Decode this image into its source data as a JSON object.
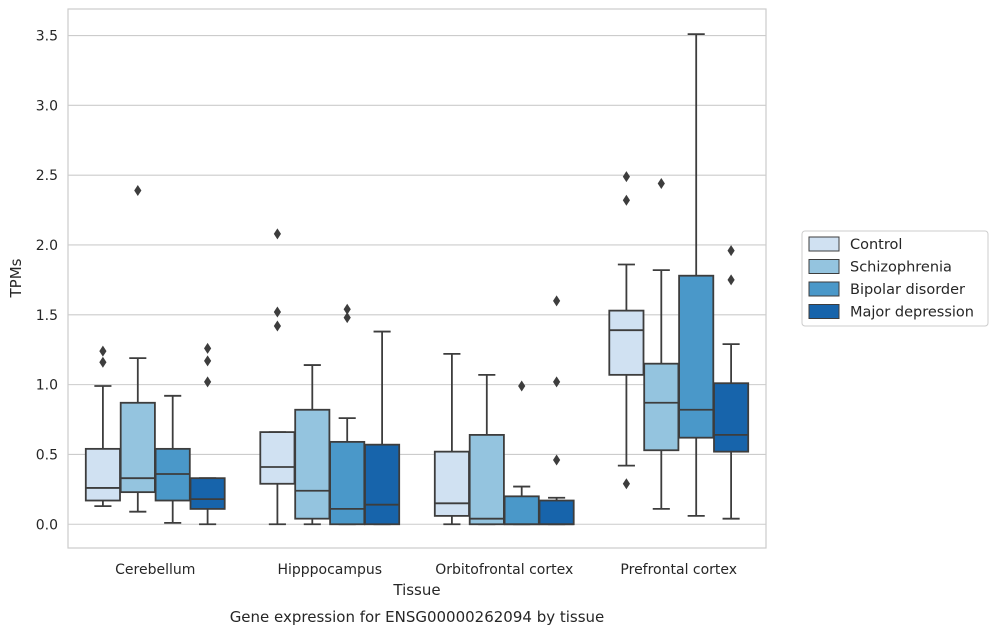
{
  "chart_data": {
    "type": "box",
    "title": "",
    "caption": "Gene expression for ENSG00000262094 by tissue",
    "xlabel": "Tissue",
    "ylabel": "TPMs",
    "ylim": [
      -0.17,
      3.69
    ],
    "yticks": [
      0.0,
      0.5,
      1.0,
      1.5,
      2.0,
      2.5,
      3.0,
      3.5
    ],
    "ytick_labels": [
      "0.0",
      "0.5",
      "1.0",
      "1.5",
      "2.0",
      "2.5",
      "3.0",
      "3.5"
    ],
    "grid": "horizontal",
    "legend_position": "right",
    "categories": [
      "Cerebellum",
      "Hipppocampus",
      "Orbitofrontal cortex",
      "Prefrontal cortex"
    ],
    "series": [
      {
        "name": "Control",
        "color": "#d0e1f2",
        "boxes": [
          {
            "whisker_low": 0.13,
            "q1": 0.17,
            "median": 0.26,
            "q3": 0.54,
            "whisker_high": 0.99,
            "outliers": [
              1.16,
              1.24
            ]
          },
          {
            "whisker_low": 0.0,
            "q1": 0.29,
            "median": 0.41,
            "q3": 0.66,
            "whisker_high": 0.66,
            "outliers": [
              1.42,
              1.52,
              2.08
            ]
          },
          {
            "whisker_low": 0.0,
            "q1": 0.06,
            "median": 0.15,
            "q3": 0.52,
            "whisker_high": 1.22,
            "outliers": []
          },
          {
            "whisker_low": 0.42,
            "q1": 1.07,
            "median": 1.39,
            "q3": 1.53,
            "whisker_high": 1.86,
            "outliers": [
              0.29,
              2.32,
              2.49
            ]
          }
        ]
      },
      {
        "name": "Schizophrenia",
        "color": "#94c4df",
        "boxes": [
          {
            "whisker_low": 0.09,
            "q1": 0.23,
            "median": 0.33,
            "q3": 0.87,
            "whisker_high": 1.19,
            "outliers": [
              2.39
            ]
          },
          {
            "whisker_low": 0.0,
            "q1": 0.04,
            "median": 0.24,
            "q3": 0.82,
            "whisker_high": 1.14,
            "outliers": []
          },
          {
            "whisker_low": 0.0,
            "q1": 0.0,
            "median": 0.04,
            "q3": 0.64,
            "whisker_high": 1.07,
            "outliers": []
          },
          {
            "whisker_low": 0.11,
            "q1": 0.53,
            "median": 0.87,
            "q3": 1.15,
            "whisker_high": 1.82,
            "outliers": [
              2.44
            ]
          }
        ]
      },
      {
        "name": "Bipolar disorder",
        "color": "#4a98c9",
        "boxes": [
          {
            "whisker_low": 0.01,
            "q1": 0.17,
            "median": 0.36,
            "q3": 0.54,
            "whisker_high": 0.92,
            "outliers": []
          },
          {
            "whisker_low": 0.0,
            "q1": 0.0,
            "median": 0.11,
            "q3": 0.59,
            "whisker_high": 0.76,
            "outliers": [
              1.48,
              1.54
            ]
          },
          {
            "whisker_low": 0.0,
            "q1": 0.0,
            "median": 0.0,
            "q3": 0.2,
            "whisker_high": 0.27,
            "outliers": [
              0.99
            ]
          },
          {
            "whisker_low": 0.06,
            "q1": 0.62,
            "median": 0.82,
            "q3": 1.78,
            "whisker_high": 3.51,
            "outliers": []
          }
        ]
      },
      {
        "name": "Major depression",
        "color": "#1764ab",
        "boxes": [
          {
            "whisker_low": 0.0,
            "q1": 0.11,
            "median": 0.18,
            "q3": 0.33,
            "whisker_high": 0.33,
            "outliers": [
              1.02,
              1.17,
              1.26
            ]
          },
          {
            "whisker_low": 0.0,
            "q1": 0.0,
            "median": 0.14,
            "q3": 0.57,
            "whisker_high": 1.38,
            "outliers": []
          },
          {
            "whisker_low": 0.0,
            "q1": 0.0,
            "median": 0.0,
            "q3": 0.17,
            "whisker_high": 0.19,
            "outliers": [
              0.46,
              1.02,
              1.6
            ]
          },
          {
            "whisker_low": 0.04,
            "q1": 0.52,
            "median": 0.64,
            "q3": 1.01,
            "whisker_high": 1.29,
            "outliers": [
              1.75,
              1.96
            ]
          }
        ]
      }
    ]
  }
}
